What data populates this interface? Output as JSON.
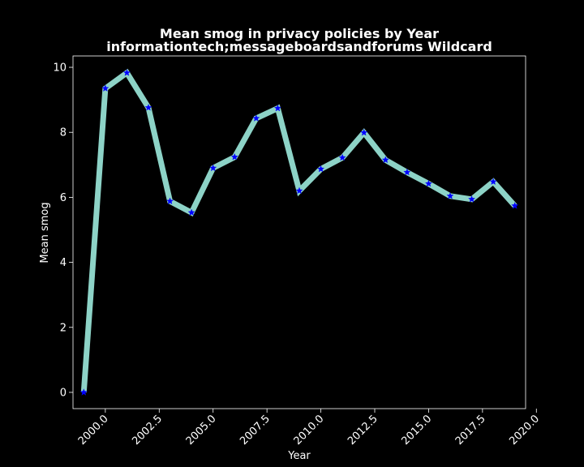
{
  "chart_data": {
    "type": "line",
    "title": "Mean smog in privacy policies by Year",
    "subtitle": "informationtech;messageboardsandforums Wildcard",
    "xlabel": "Year",
    "ylabel": "Mean smog",
    "xlim": [
      1998.5,
      2019.5
    ],
    "ylim": [
      -0.5,
      10.35
    ],
    "xticks": [
      2000.0,
      2002.5,
      2005.0,
      2007.5,
      2010.0,
      2012.5,
      2015.0,
      2017.5,
      2020.0
    ],
    "xtick_labels": [
      "2000.0",
      "2002.5",
      "2005.0",
      "2007.5",
      "2010.0",
      "2012.5",
      "2015.0",
      "2017.5",
      "2020.0"
    ],
    "yticks": [
      0,
      2,
      4,
      6,
      8,
      10
    ],
    "ytick_labels": [
      "0",
      "2",
      "4",
      "6",
      "8",
      "10"
    ],
    "grid": false,
    "series": [
      {
        "line_color": "#8dd3c7",
        "marker_color": "#0000ff",
        "marker": "star",
        "x": [
          1999,
          2000,
          2001,
          2002,
          2003,
          2004,
          2005,
          2006,
          2007,
          2008,
          2009,
          2010,
          2011,
          2012,
          2013,
          2014,
          2015,
          2016,
          2017,
          2018,
          2019
        ],
        "y": [
          0.0,
          9.35,
          9.83,
          8.76,
          5.88,
          5.53,
          6.9,
          7.24,
          8.43,
          8.74,
          6.2,
          6.87,
          7.22,
          7.99,
          7.15,
          6.77,
          6.42,
          6.04,
          5.94,
          6.48,
          5.74
        ]
      }
    ]
  },
  "colors": {
    "background": "#000000",
    "foreground": "#ffffff",
    "line": "#8dd3c7",
    "marker": "#0000ff"
  }
}
